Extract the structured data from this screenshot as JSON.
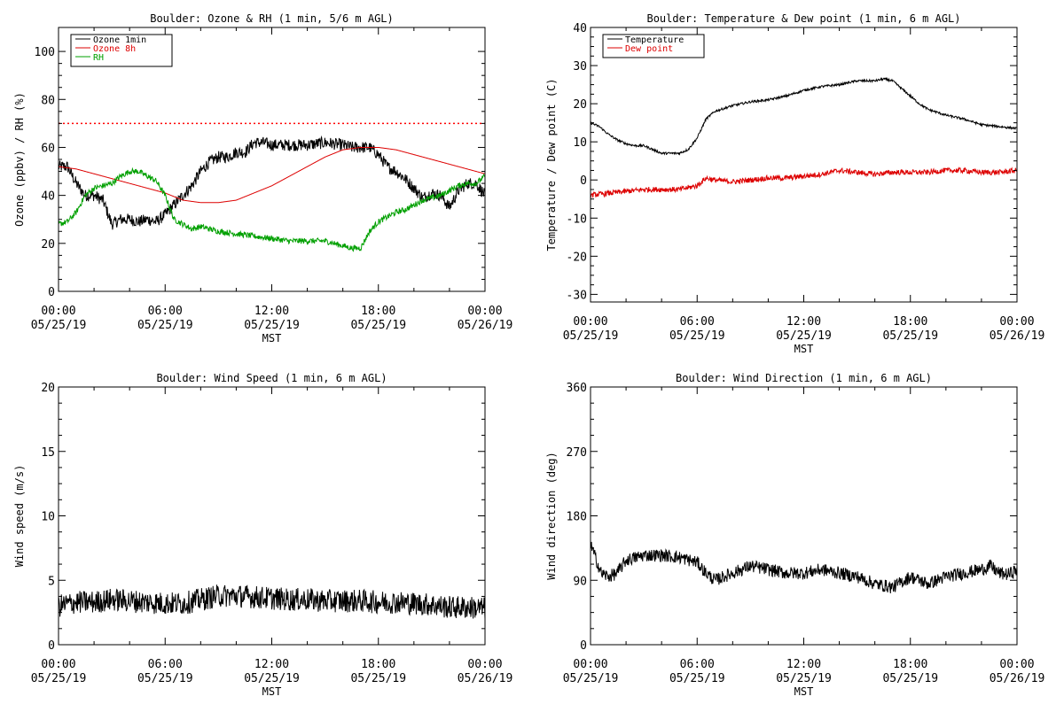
{
  "chart_data": [
    {
      "type": "line",
      "title": "Boulder: Ozone & RH (1 min, 5/6 m AGL)",
      "ylabel": "Ozone (ppbv) / RH (%)",
      "xlabel": "MST",
      "ylim": [
        0,
        110
      ],
      "yticks": [
        0,
        20,
        40,
        60,
        80,
        100
      ],
      "xlim": [
        0,
        24
      ],
      "xticks": [
        {
          "x": 0,
          "time": "00:00",
          "date": "05/25/19"
        },
        {
          "x": 6,
          "time": "06:00",
          "date": "05/25/19"
        },
        {
          "x": 12,
          "time": "12:00",
          "date": "05/25/19"
        },
        {
          "x": 18,
          "time": "18:00",
          "date": "05/25/19"
        },
        {
          "x": 24,
          "time": "00:00",
          "date": "05/26/19"
        }
      ],
      "legend": "top-left",
      "reference_lines": [
        {
          "y": 70,
          "color": "#ff0000",
          "style": "dotted"
        }
      ],
      "series": [
        {
          "name": "Ozone 1min",
          "color": "#000000",
          "noise": 2.5,
          "x": [
            0,
            0.5,
            1,
            1.5,
            2,
            2.5,
            3,
            3.5,
            4,
            4.5,
            5,
            5.5,
            6,
            6.5,
            7,
            7.5,
            8,
            8.5,
            9,
            9.5,
            10,
            10.5,
            11,
            11.5,
            12,
            13,
            14,
            15,
            16,
            16.5,
            17,
            17.5,
            18,
            18.5,
            19,
            19.5,
            20,
            20.5,
            21,
            21.5,
            22,
            22.5,
            23,
            23.5,
            24
          ],
          "values": [
            52,
            52,
            45,
            40,
            40,
            38,
            28,
            30,
            30,
            29,
            30,
            29,
            32,
            36,
            40,
            44,
            50,
            54,
            56,
            56,
            58,
            58,
            62,
            62,
            61,
            61,
            61,
            62,
            61,
            60,
            60,
            60,
            57,
            52,
            50,
            47,
            43,
            39,
            41,
            40,
            35,
            42,
            45,
            45,
            40
          ]
        },
        {
          "name": "Ozone 8h",
          "color": "#dd0000",
          "noise": 0,
          "x": [
            0,
            1,
            2,
            3,
            4,
            5,
            6,
            7,
            8,
            9,
            10,
            11,
            12,
            13,
            14,
            15,
            16,
            17,
            18,
            19,
            20,
            21,
            22,
            23,
            24
          ],
          "values": [
            52,
            51,
            49,
            47,
            45,
            43,
            41,
            38,
            37,
            37,
            38,
            41,
            44,
            48,
            52,
            56,
            59,
            60,
            60,
            59,
            57,
            55,
            53,
            51,
            49
          ]
        },
        {
          "name": "RH",
          "color": "#00a000",
          "noise": 1.2,
          "x": [
            0,
            0.5,
            1,
            1.5,
            2,
            2.5,
            3,
            3.5,
            4,
            4.5,
            5,
            5.5,
            6,
            6.5,
            7,
            7.5,
            8,
            9,
            10,
            11,
            12,
            13,
            14,
            15,
            16,
            16.5,
            17,
            17.5,
            18,
            18.5,
            19,
            19.5,
            20,
            20.5,
            21,
            21.5,
            22,
            22.5,
            23,
            23.5,
            24
          ],
          "values": [
            28,
            29,
            33,
            40,
            43,
            44,
            45,
            48,
            50,
            50,
            48,
            46,
            40,
            30,
            28,
            26,
            27,
            25,
            24,
            23,
            22,
            21,
            21,
            21,
            19,
            18,
            18,
            25,
            29,
            31,
            33,
            34,
            36,
            38,
            39,
            40,
            42,
            44,
            45,
            45,
            48
          ]
        }
      ]
    },
    {
      "type": "line",
      "title": "Boulder: Temperature & Dew point (1 min, 6 m AGL)",
      "ylabel": "Temperature / Dew point (C)",
      "xlabel": "MST",
      "ylim": [
        -32,
        40
      ],
      "yticks": [
        -30,
        -20,
        -10,
        0,
        10,
        20,
        30,
        40
      ],
      "xlim": [
        0,
        24
      ],
      "xticks": [
        {
          "x": 0,
          "time": "00:00",
          "date": "05/25/19"
        },
        {
          "x": 6,
          "time": "06:00",
          "date": "05/25/19"
        },
        {
          "x": 12,
          "time": "12:00",
          "date": "05/25/19"
        },
        {
          "x": 18,
          "time": "18:00",
          "date": "05/25/19"
        },
        {
          "x": 24,
          "time": "00:00",
          "date": "05/26/19"
        }
      ],
      "legend": "top-left",
      "series": [
        {
          "name": "Temperature",
          "color": "#000000",
          "noise": 0.3,
          "x": [
            0,
            0.5,
            1,
            1.5,
            2,
            2.5,
            3,
            3.5,
            4,
            4.5,
            5,
            5.5,
            6,
            6.5,
            7,
            8,
            9,
            10,
            11,
            12,
            13,
            14,
            15,
            16,
            16.5,
            17,
            17.5,
            18,
            18.5,
            19,
            20,
            21,
            22,
            23,
            24
          ],
          "values": [
            15,
            14,
            12,
            10.5,
            9.5,
            9,
            9,
            8,
            7,
            7,
            7,
            8,
            11,
            16,
            18,
            19.5,
            20.5,
            21,
            22,
            23.5,
            24.5,
            25,
            26,
            26,
            26.5,
            26,
            24,
            22,
            20,
            18.5,
            17,
            16,
            14.5,
            14,
            13.5
          ]
        },
        {
          "name": "Dew point",
          "color": "#dd0000",
          "noise": 0.7,
          "x": [
            0,
            1,
            2,
            3,
            4,
            5,
            6,
            6.5,
            7,
            8,
            9,
            10,
            11,
            12,
            13,
            14,
            15,
            16,
            17,
            18,
            19,
            20,
            21,
            22,
            23,
            24
          ],
          "values": [
            -4,
            -3.5,
            -3,
            -2.5,
            -2.5,
            -2.5,
            -1.5,
            0.5,
            0,
            -0.5,
            0,
            0.5,
            0.5,
            1,
            1.5,
            2.5,
            2,
            1.5,
            2,
            2,
            2,
            2.5,
            2.5,
            2,
            2,
            2.5
          ]
        }
      ]
    },
    {
      "type": "line",
      "title": "Boulder: Wind Speed (1 min, 6 m AGL)",
      "ylabel": "Wind speed (m/s)",
      "xlabel": "MST",
      "ylim": [
        0,
        20
      ],
      "yticks": [
        0,
        5,
        10,
        15,
        20
      ],
      "xlim": [
        0,
        24
      ],
      "xticks": [
        {
          "x": 0,
          "time": "00:00",
          "date": "05/25/19"
        },
        {
          "x": 6,
          "time": "06:00",
          "date": "05/25/19"
        },
        {
          "x": 12,
          "time": "12:00",
          "date": "05/25/19"
        },
        {
          "x": 18,
          "time": "18:00",
          "date": "05/25/19"
        },
        {
          "x": 24,
          "time": "00:00",
          "date": "05/26/19"
        }
      ],
      "series": [
        {
          "name": "",
          "color": "#000000",
          "noise": 0.9,
          "x": [
            0,
            1,
            2,
            3,
            4,
            5,
            6,
            7,
            8,
            9,
            10,
            11,
            12,
            13,
            14,
            15,
            16,
            17,
            18,
            19,
            20,
            21,
            22,
            23,
            24
          ],
          "values": [
            3,
            3.3,
            3.3,
            3.5,
            3.4,
            3.3,
            3.2,
            3.2,
            3.5,
            3.8,
            3.8,
            3.7,
            3.6,
            3.5,
            3.5,
            3.4,
            3.4,
            3.4,
            3.3,
            3.3,
            3.2,
            3.1,
            2.9,
            2.9,
            2.8
          ]
        }
      ]
    },
    {
      "type": "line",
      "title": "Boulder: Wind Direction (1 min, 6 m AGL)",
      "ylabel": "Wind direction (deg)",
      "xlabel": "MST",
      "ylim": [
        0,
        360
      ],
      "yticks": [
        0,
        90,
        180,
        270,
        360
      ],
      "xlim": [
        0,
        24
      ],
      "xticks": [
        {
          "x": 0,
          "time": "00:00",
          "date": "05/25/19"
        },
        {
          "x": 6,
          "time": "06:00",
          "date": "05/25/19"
        },
        {
          "x": 12,
          "time": "12:00",
          "date": "05/25/19"
        },
        {
          "x": 18,
          "time": "18:00",
          "date": "05/25/19"
        },
        {
          "x": 24,
          "time": "00:00",
          "date": "05/26/19"
        }
      ],
      "series": [
        {
          "name": "",
          "color": "#000000",
          "noise": 9,
          "x": [
            0,
            0.3,
            0.6,
            1,
            1.5,
            2,
            3,
            4,
            5,
            6,
            6.5,
            7,
            7.5,
            8,
            9,
            10,
            11,
            12,
            13,
            14,
            15,
            16,
            17,
            18,
            19,
            20,
            21,
            22,
            22.5,
            23,
            23.5,
            24
          ],
          "values": [
            140,
            120,
            100,
            95,
            100,
            118,
            125,
            125,
            122,
            115,
            100,
            90,
            95,
            100,
            110,
            105,
            100,
            100,
            105,
            100,
            95,
            85,
            80,
            95,
            85,
            95,
            100,
            105,
            110,
            100,
            98,
            105
          ]
        }
      ]
    }
  ]
}
